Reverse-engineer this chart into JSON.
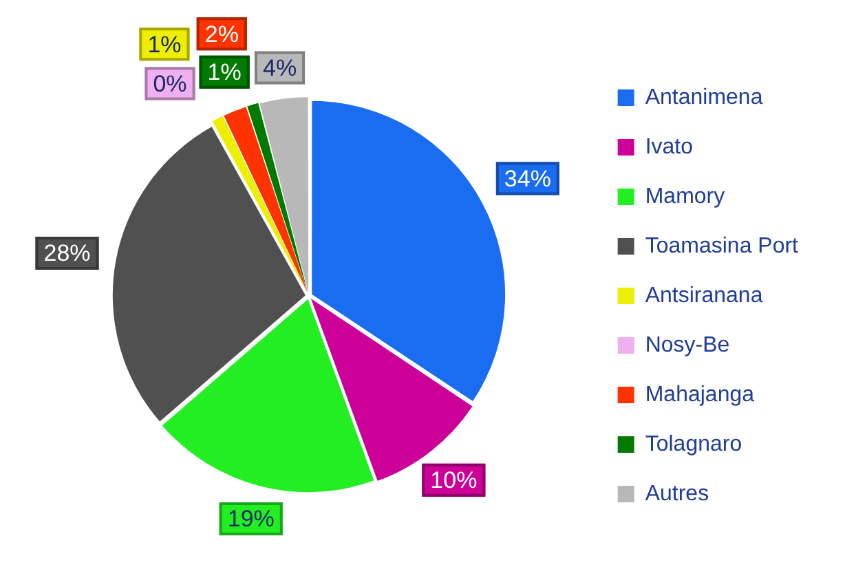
{
  "chart_data": {
    "type": "pie",
    "categories": [
      "Antanimena",
      "Ivato",
      "Mamory",
      "Toamasina Port",
      "Antsiranana",
      "Nosy-Be",
      "Mahajanga",
      "Tolagnaro",
      "Autres"
    ],
    "values": [
      34,
      10,
      19,
      28,
      1,
      0,
      2,
      1,
      4
    ],
    "colors": [
      "#1a6cf0",
      "#cc0099",
      "#22ee22",
      "#505050",
      "#eeee00",
      "#f0b0f0",
      "#ff3300",
      "#007a00",
      "#b8b8b8"
    ],
    "value_labels": [
      "34%",
      "10%",
      "19%",
      "28%",
      "1%",
      "0%",
      "2%",
      "1%",
      "4%"
    ],
    "legend": "right"
  }
}
